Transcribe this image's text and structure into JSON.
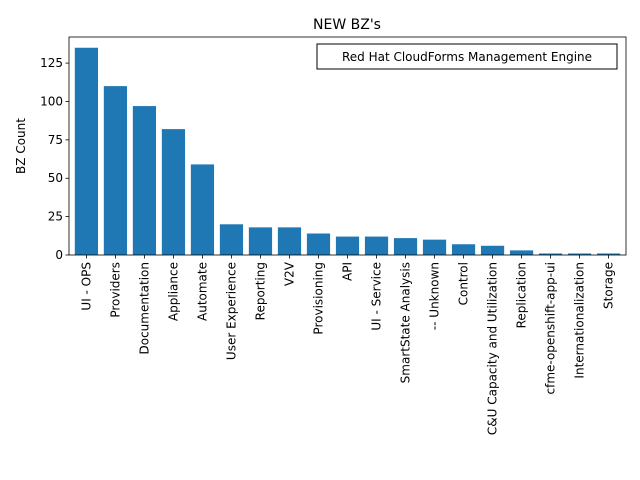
{
  "chart_data": {
    "type": "bar",
    "title": "NEW BZ's",
    "xlabel": "",
    "ylabel": "BZ Count",
    "ylim": [
      0,
      142
    ],
    "yticks": [
      0,
      25,
      50,
      75,
      100,
      125
    ],
    "grid": false,
    "legend": {
      "text": "Red Hat CloudForms Management Engine",
      "placement": "top-right"
    },
    "bar_color": "#1f77b4",
    "categories": [
      "UI - OPS",
      "Providers",
      "Documentation",
      "Appliance",
      "Automate",
      "User Experience",
      "Reporting",
      "V2V",
      "Provisioning",
      "API",
      "UI - Service",
      "SmartState Analysis",
      "-- Unknown",
      "Control",
      "C&U Capacity and Utilization",
      "Replication",
      "cfme-openshift-app-ui",
      "Internationalization",
      "Storage"
    ],
    "values": [
      135,
      110,
      97,
      82,
      59,
      20,
      18,
      18,
      14,
      12,
      12,
      11,
      10,
      7,
      6,
      3,
      1,
      1,
      1
    ]
  }
}
